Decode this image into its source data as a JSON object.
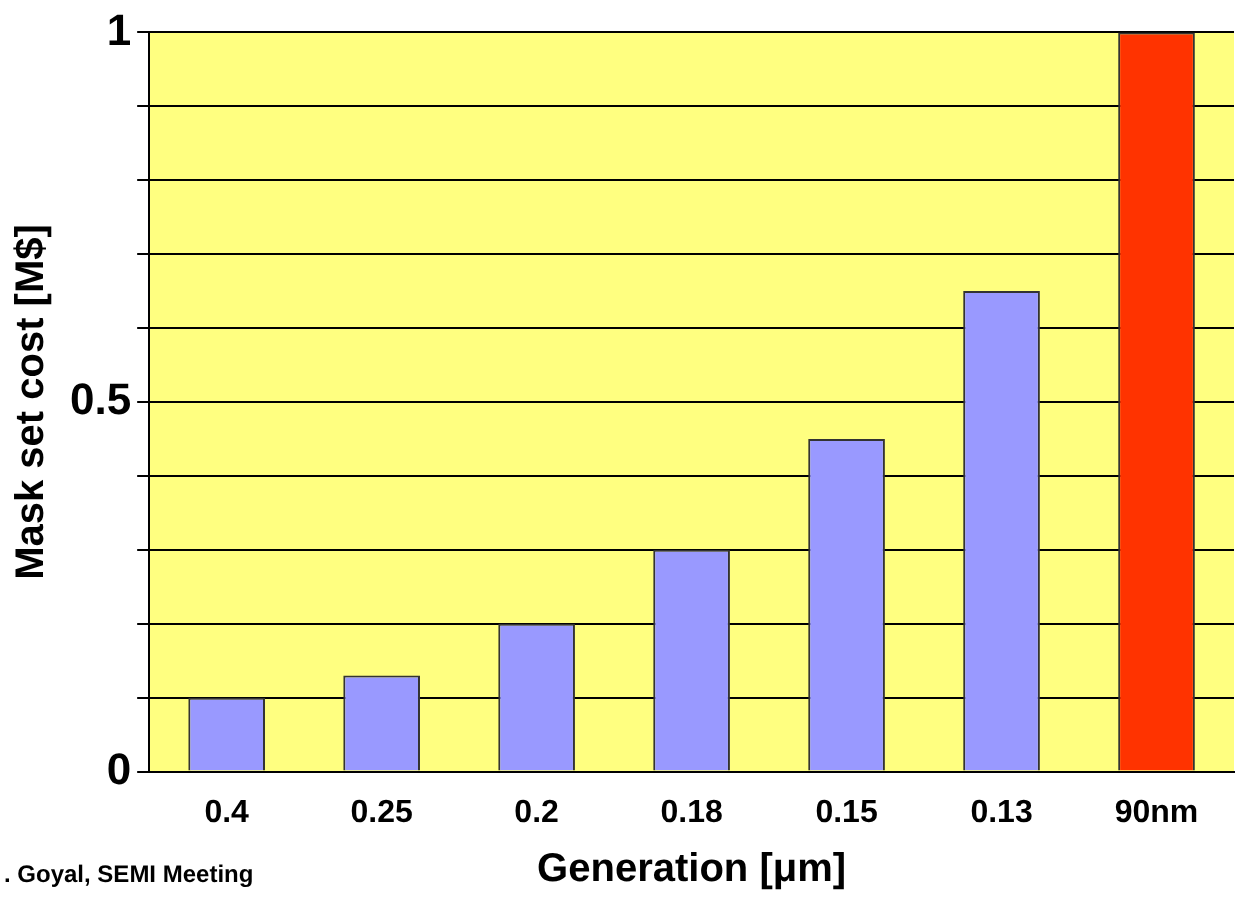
{
  "chart_data": {
    "type": "bar",
    "xlabel": "Generation [μm]",
    "ylabel": "Mask set cost [M$]",
    "categories": [
      "0.4",
      "0.25",
      "0.2",
      "0.18",
      "0.15",
      "0.13",
      "90nm"
    ],
    "values": [
      0.1,
      0.13,
      0.2,
      0.3,
      0.45,
      0.65,
      1.0
    ],
    "colors": [
      "#9999ff",
      "#9999ff",
      "#9999ff",
      "#9999ff",
      "#9999ff",
      "#9999ff",
      "#ff3300"
    ],
    "ylim": [
      0,
      1
    ],
    "yticks": [
      0,
      {
        "value": 0.1,
        "label": null
      },
      {
        "value": 0.2,
        "label": null
      },
      {
        "value": 0.3,
        "label": null
      },
      {
        "value": 0.4,
        "label": null
      },
      0.5,
      {
        "value": 0.6,
        "label": null
      },
      {
        "value": 0.7,
        "label": null
      },
      {
        "value": 0.8,
        "label": null
      },
      {
        "value": 0.9,
        "label": null
      },
      1
    ],
    "grid": "y",
    "annotations": [
      ". Goyal, SEMI Meeting"
    ]
  }
}
